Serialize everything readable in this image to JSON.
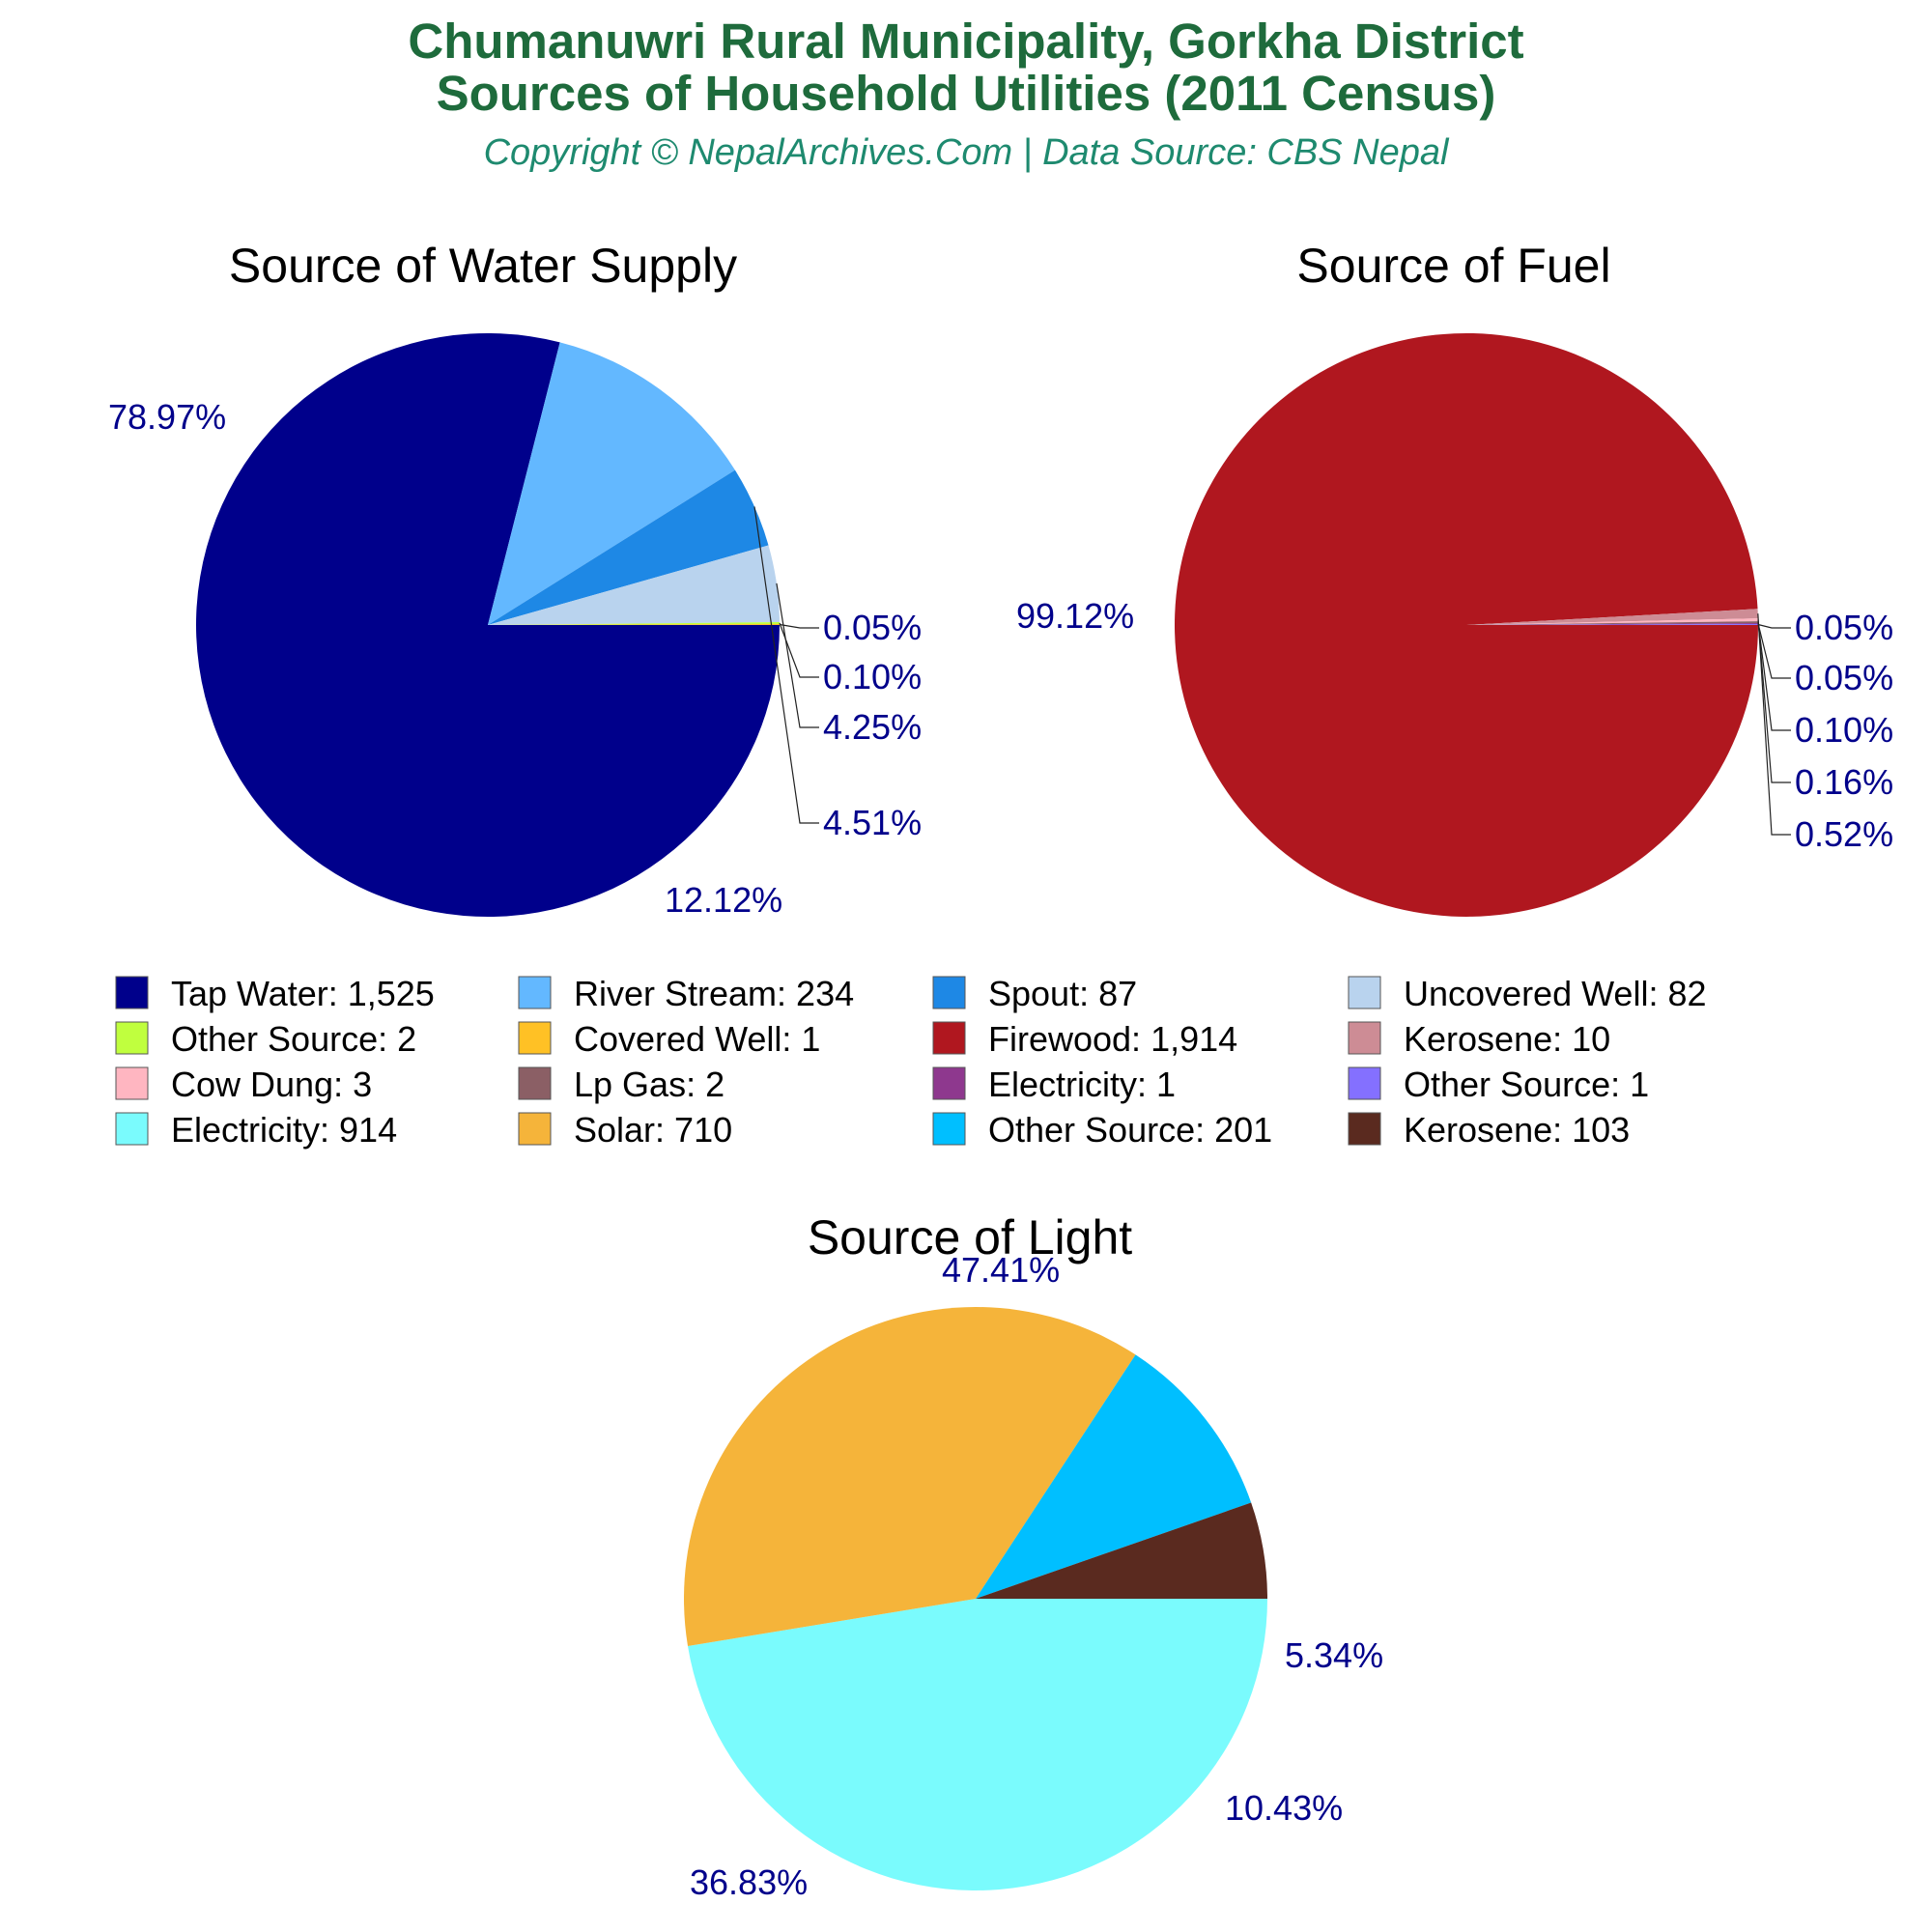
{
  "header": {
    "title_line1": "Chumanuwri Rural Municipality, Gorkha District",
    "title_line2": "Sources of Household Utilities (2011 Census)",
    "subtitle": "Copyright © NepalArchives.Com | Data Source: CBS Nepal"
  },
  "chart_data": [
    {
      "type": "pie",
      "title": "Source of Water Supply",
      "slices": [
        {
          "name": "Tap Water",
          "value": 1525,
          "label": "78.97%",
          "color": "#00008b"
        },
        {
          "name": "River Stream",
          "value": 234,
          "label": "12.12%",
          "color": "#63b8ff"
        },
        {
          "name": "Spout",
          "value": 87,
          "label": "4.51%",
          "color": "#1e88e5"
        },
        {
          "name": "Uncovered Well",
          "value": 82,
          "label": "4.25%",
          "color": "#b9d3ee"
        },
        {
          "name": "Other Source",
          "value": 2,
          "label": "0.10%",
          "color": "#c0ff3e"
        },
        {
          "name": "Covered Well",
          "value": 1,
          "label": "0.05%",
          "color": "#ffc125"
        }
      ]
    },
    {
      "type": "pie",
      "title": "Source of Fuel",
      "slices": [
        {
          "name": "Firewood",
          "value": 1914,
          "label": "99.12%",
          "color": "#b0171f"
        },
        {
          "name": "Kerosene",
          "value": 10,
          "label": "0.52%",
          "color": "#cd8c95"
        },
        {
          "name": "Cow Dung",
          "value": 3,
          "label": "0.16%",
          "color": "#ffb6c1"
        },
        {
          "name": "Lp Gas",
          "value": 2,
          "label": "0.10%",
          "color": "#8b5f65"
        },
        {
          "name": "Electricity",
          "value": 1,
          "label": "0.05%",
          "color": "#8e388e"
        },
        {
          "name": "Other Source",
          "value": 1,
          "label": "0.05%",
          "color": "#8470ff"
        }
      ]
    },
    {
      "type": "pie",
      "title": "Source of Light",
      "slices": [
        {
          "name": "Electricity",
          "value": 914,
          "label": "47.41%",
          "color": "#7afbfd"
        },
        {
          "name": "Solar",
          "value": 710,
          "label": "36.83%",
          "color": "#f5b43a"
        },
        {
          "name": "Other Source",
          "value": 201,
          "label": "10.43%",
          "color": "#00bfff"
        },
        {
          "name": "Kerosene",
          "value": 103,
          "label": "5.34%",
          "color": "#5a2a1f"
        }
      ]
    }
  ],
  "legend": [
    {
      "label": "Tap Water: 1,525",
      "color": "#00008b"
    },
    {
      "label": "River Stream: 234",
      "color": "#63b8ff"
    },
    {
      "label": "Spout: 87",
      "color": "#1e88e5"
    },
    {
      "label": "Uncovered Well: 82",
      "color": "#b9d3ee"
    },
    {
      "label": "Other Source: 2",
      "color": "#c0ff3e"
    },
    {
      "label": "Covered Well: 1",
      "color": "#ffc125"
    },
    {
      "label": "Firewood: 1,914",
      "color": "#b0171f"
    },
    {
      "label": "Kerosene: 10",
      "color": "#cd8c95"
    },
    {
      "label": "Cow Dung: 3",
      "color": "#ffb6c1"
    },
    {
      "label": "Lp Gas: 2",
      "color": "#8b5f65"
    },
    {
      "label": "Electricity: 1",
      "color": "#8e388e"
    },
    {
      "label": "Other Source: 1",
      "color": "#8470ff"
    },
    {
      "label": "Electricity: 914",
      "color": "#7afbfd"
    },
    {
      "label": "Solar: 710",
      "color": "#f5b43a"
    },
    {
      "label": "Other Source: 201",
      "color": "#00bfff"
    },
    {
      "label": "Kerosene: 103",
      "color": "#5a2a1f"
    }
  ]
}
